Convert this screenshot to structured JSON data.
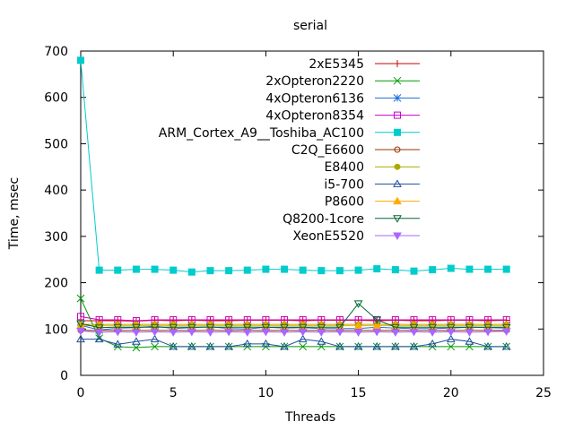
{
  "chart_data": {
    "type": "line",
    "title": "serial",
    "xlabel": "Threads",
    "ylabel": "Time, msec",
    "xlim": [
      0,
      25
    ],
    "ylim": [
      0,
      700
    ],
    "xticks": [
      0,
      5,
      10,
      15,
      20,
      25
    ],
    "yticks": [
      0,
      100,
      200,
      300,
      400,
      500,
      600,
      700
    ],
    "grid": false,
    "legend_position": "top-right",
    "x": [
      0,
      1,
      2,
      3,
      4,
      5,
      6,
      7,
      8,
      9,
      10,
      11,
      12,
      13,
      14,
      15,
      16,
      17,
      18,
      19,
      20,
      21,
      22,
      23
    ],
    "series": [
      {
        "name": "2xE5345",
        "color": "#cc0000",
        "marker": "plus",
        "values": [
          118,
          118,
          118,
          117,
          119,
          118,
          119,
          118,
          118,
          119,
          119,
          119,
          118,
          119,
          119,
          119,
          118,
          119,
          118,
          118,
          119,
          119,
          118,
          119
        ]
      },
      {
        "name": "2xOpteron2220",
        "color": "#009900",
        "marker": "cross",
        "values": [
          166,
          80,
          62,
          60,
          62,
          62,
          62,
          62,
          62,
          62,
          62,
          62,
          62,
          62,
          62,
          62,
          62,
          62,
          62,
          62,
          62,
          62,
          62,
          62
        ]
      },
      {
        "name": "4xOpteron6136",
        "color": "#1e6fd9",
        "marker": "star",
        "values": [
          108,
          98,
          102,
          103,
          106,
          101,
          103,
          105,
          101,
          100,
          104,
          102,
          103,
          101,
          101,
          101,
          104,
          102,
          101,
          101,
          102,
          104,
          103,
          102
        ]
      },
      {
        "name": "4xOpteron8354",
        "color": "#cc00cc",
        "marker": "square",
        "values": [
          127,
          120,
          120,
          118,
          120,
          120,
          120,
          120,
          120,
          120,
          120,
          120,
          120,
          120,
          120,
          120,
          120,
          120,
          120,
          120,
          120,
          120,
          120,
          120
        ]
      },
      {
        "name": "ARM_Cortex_A9__Toshiba_AC100",
        "color": "#00cccc",
        "marker": "filled-square",
        "values": [
          680,
          227,
          227,
          229,
          229,
          227,
          223,
          226,
          226,
          227,
          229,
          229,
          227,
          226,
          226,
          227,
          230,
          228,
          225,
          228,
          231,
          229,
          229,
          229
        ]
      },
      {
        "name": "C2Q_E6600",
        "color": "#993300",
        "marker": "circle",
        "values": [
          97,
          97,
          97,
          97,
          97,
          97,
          97,
          97,
          97,
          97,
          97,
          97,
          97,
          97,
          97,
          97,
          97,
          97,
          97,
          97,
          97,
          97,
          97,
          97
        ]
      },
      {
        "name": "E8400",
        "color": "#aaaa00",
        "marker": "filled-circle",
        "values": [
          110,
          110,
          110,
          110,
          110,
          110,
          110,
          110,
          110,
          110,
          110,
          110,
          110,
          110,
          110,
          110,
          110,
          110,
          110,
          110,
          110,
          110,
          110,
          110
        ]
      },
      {
        "name": "i5-700",
        "color": "#1e4fa0",
        "marker": "triangle",
        "values": [
          78,
          78,
          67,
          73,
          78,
          62,
          62,
          62,
          62,
          68,
          68,
          62,
          78,
          73,
          62,
          62,
          62,
          62,
          62,
          68,
          78,
          73,
          62,
          62
        ]
      },
      {
        "name": "P8600",
        "color": "#ffaa00",
        "marker": "filled-triangle",
        "values": [
          107,
          107,
          107,
          107,
          107,
          107,
          107,
          107,
          107,
          107,
          107,
          107,
          107,
          107,
          107,
          107,
          107,
          107,
          107,
          107,
          107,
          107,
          107,
          107
        ]
      },
      {
        "name": "Q8200-1core",
        "color": "#006633",
        "marker": "inverted-triangle",
        "values": [
          112,
          103,
          104,
          104,
          104,
          104,
          104,
          104,
          104,
          104,
          104,
          104,
          104,
          104,
          104,
          155,
          120,
          104,
          104,
          104,
          104,
          104,
          104,
          104
        ]
      },
      {
        "name": "XeonE5520",
        "color": "#aa66ff",
        "marker": "filled-inverted-triangle",
        "values": [
          96,
          93,
          94,
          93,
          94,
          93,
          94,
          93,
          94,
          93,
          94,
          93,
          94,
          93,
          94,
          93,
          94,
          93,
          94,
          93,
          94,
          93,
          94,
          95
        ]
      }
    ]
  }
}
